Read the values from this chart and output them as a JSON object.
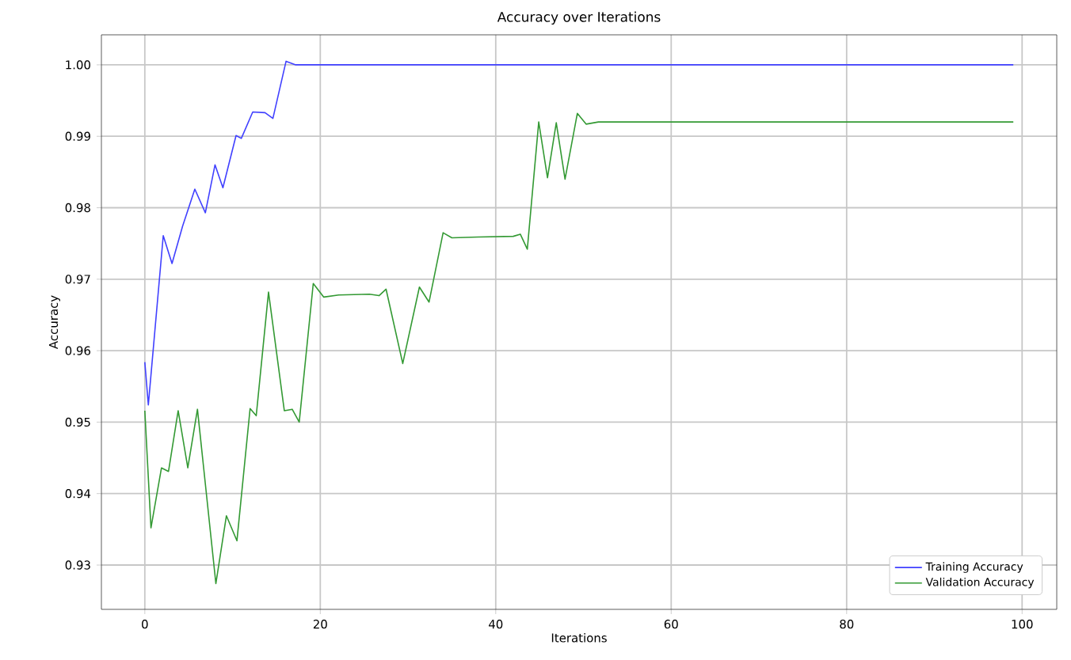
{
  "chart_data": {
    "type": "line",
    "title": "Accuracy over Iterations",
    "xlabel": "Iterations",
    "ylabel": "Accuracy",
    "xlim": [
      -4.95,
      103.95
    ],
    "ylim": [
      0.9238,
      1.0042
    ],
    "xticks": [
      0,
      20,
      40,
      60,
      80,
      100
    ],
    "yticks": [
      {
        "value": 0.93,
        "label": "0.93"
      },
      {
        "value": 0.94,
        "label": "0.94"
      },
      {
        "value": 0.95,
        "label": "0.95"
      },
      {
        "value": 0.96,
        "label": "0.96"
      },
      {
        "value": 0.97,
        "label": "0.97"
      },
      {
        "value": 0.98,
        "label": "0.98"
      },
      {
        "value": 0.99,
        "label": "0.99"
      },
      {
        "value": 1.0,
        "label": "1.00"
      }
    ],
    "grid": true,
    "legend": "bottom right",
    "marker": "none",
    "line_style": "solid",
    "series": [
      {
        "name": "Training Accuracy",
        "color": "#4040ff",
        "x": [
          0,
          0.4,
          2.1,
          3.1,
          4.3,
          5.7,
          6.9,
          8.0,
          8.9,
          10.4,
          11.0,
          12.3,
          13.7,
          14.6,
          16.1,
          17.2,
          20,
          40,
          60,
          80,
          99
        ],
        "values": [
          0.9584,
          0.9524,
          0.9761,
          0.9722,
          0.9774,
          0.9826,
          0.9793,
          0.986,
          0.9828,
          0.9901,
          0.9897,
          0.9934,
          0.9933,
          0.9925,
          1.0005,
          1.0,
          1.0,
          1.0,
          1.0,
          1.0,
          1.0
        ]
      },
      {
        "name": "Validation Accuracy",
        "color": "#339933",
        "x": [
          0,
          0.7,
          1.9,
          2.7,
          3.8,
          4.9,
          6.0,
          8.1,
          9.3,
          10.5,
          12.0,
          12.7,
          14.1,
          15.9,
          16.8,
          17.6,
          19.2,
          20.4,
          22.1,
          25.6,
          26.7,
          27.5,
          29.4,
          31.3,
          32.4,
          34.0,
          35.0,
          38.0,
          42.0,
          42.8,
          43.6,
          44.9,
          45.9,
          46.9,
          47.9,
          49.3,
          50.3,
          51.7,
          60,
          80,
          99
        ],
        "values": [
          0.9516,
          0.9352,
          0.9436,
          0.9431,
          0.9516,
          0.9436,
          0.9518,
          0.9274,
          0.9369,
          0.9334,
          0.9519,
          0.9509,
          0.9682,
          0.9516,
          0.9518,
          0.95,
          0.9694,
          0.9675,
          0.9678,
          0.9679,
          0.9677,
          0.9686,
          0.9582,
          0.9689,
          0.9668,
          0.9765,
          0.9758,
          0.9759,
          0.976,
          0.9763,
          0.9742,
          0.992,
          0.9842,
          0.9919,
          0.984,
          0.9932,
          0.9917,
          0.992,
          0.992,
          0.992,
          0.992
        ]
      }
    ]
  }
}
